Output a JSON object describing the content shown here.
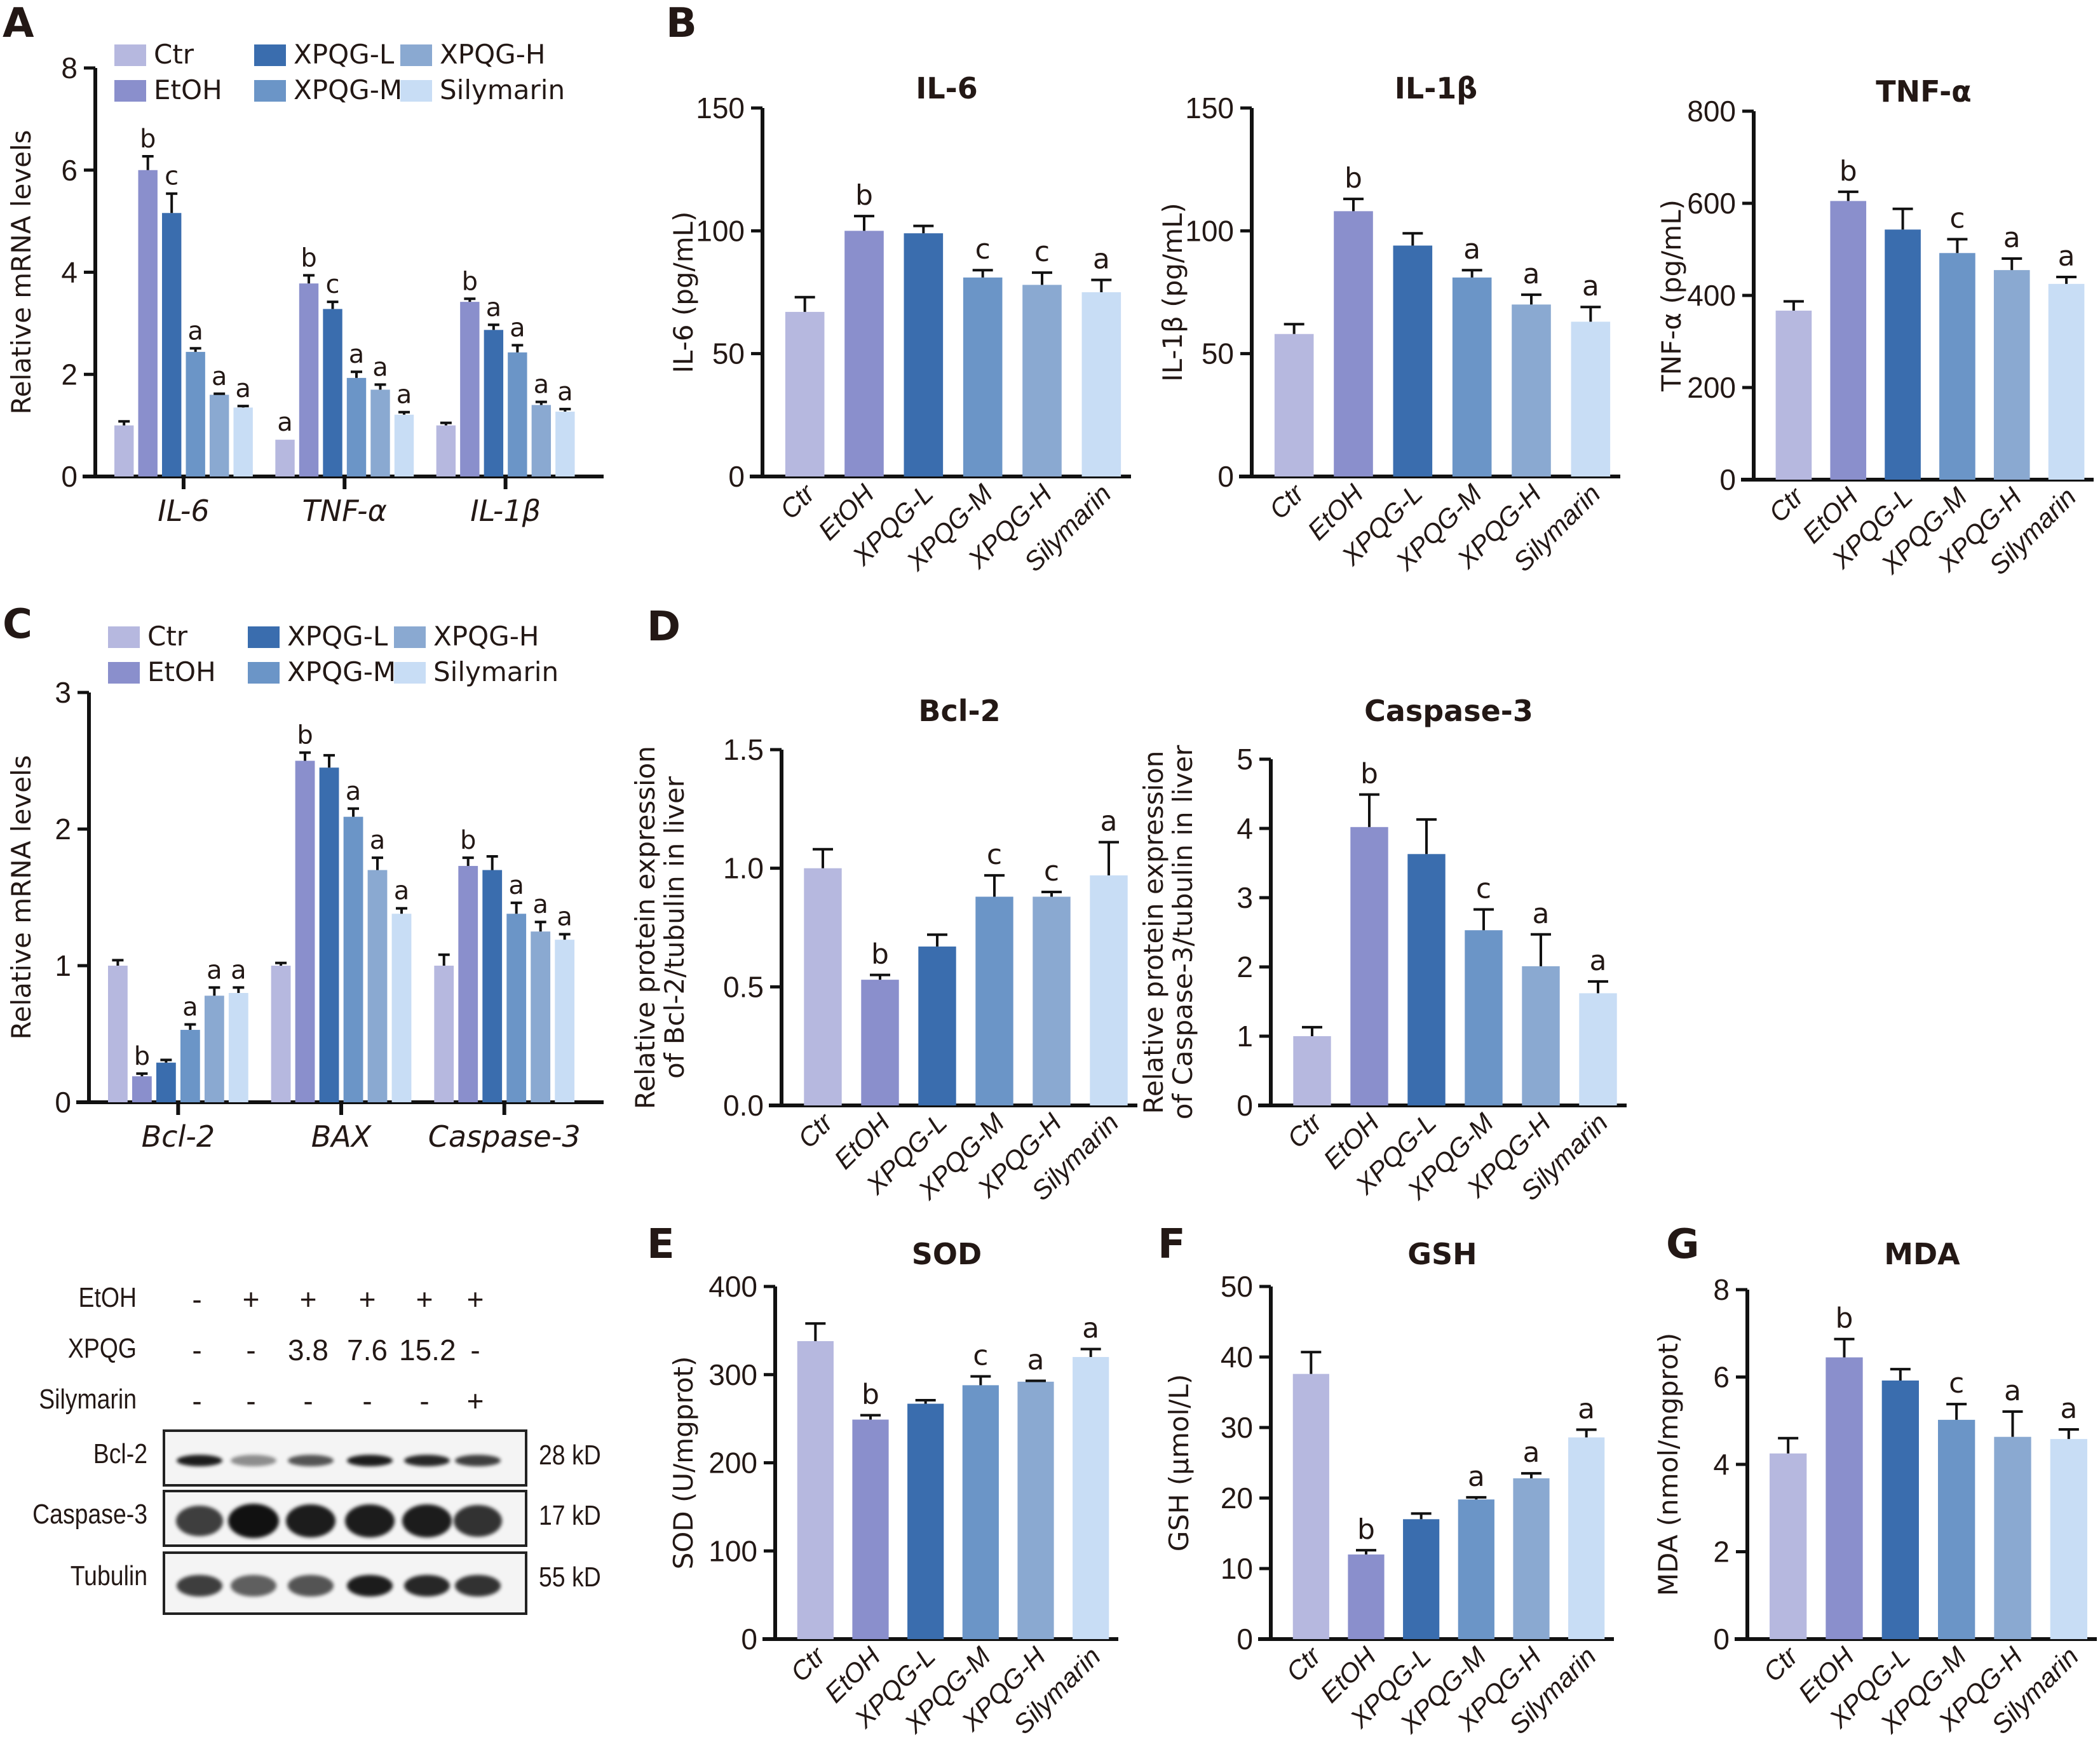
{
  "groups": [
    "Ctr",
    "EtOH",
    "XPQG-L",
    "XPQG-M",
    "XPQG-H",
    "Silymarin"
  ],
  "group_colors": [
    "#B6B8DF",
    "#8A8FCC",
    "#3A6DAE",
    "#6B95C7",
    "#8AA9D1",
    "#C8DDF5"
  ],
  "panel_letters": {
    "A": "A",
    "B": "B",
    "C": "C",
    "D": "D",
    "E": "E",
    "F": "F",
    "G": "G"
  },
  "western_blot": {
    "conditions": [
      {
        "label": "EtOH",
        "values": [
          "-",
          "+",
          "+",
          "+",
          "+",
          "+"
        ]
      },
      {
        "label": "XPQG",
        "values": [
          "-",
          "-",
          "3.8",
          "7.6",
          "15.2",
          "-"
        ]
      },
      {
        "label": "Silymarin",
        "values": [
          "-",
          "-",
          "-",
          "-",
          "-",
          "+"
        ]
      }
    ],
    "bands": [
      {
        "label": "Bcl-2",
        "size": "28 kD",
        "intensity": [
          0.95,
          0.45,
          0.7,
          0.95,
          0.9,
          0.8
        ]
      },
      {
        "label": "Caspase-3",
        "size": "17 kD",
        "intensity": [
          0.8,
          1.0,
          0.95,
          0.95,
          0.95,
          0.85
        ]
      },
      {
        "label": "Tubulin",
        "size": "55 kD",
        "intensity": [
          0.8,
          0.65,
          0.7,
          0.95,
          0.9,
          0.85
        ]
      }
    ]
  },
  "chart_data": [
    {
      "id": "A",
      "type": "bar",
      "grouped": true,
      "title": "",
      "xlabel": "",
      "ylabel": "Relative mRNA levels",
      "ylim": [
        0,
        8
      ],
      "yticks": [
        "0",
        "2",
        "4",
        "6",
        "8"
      ],
      "categories": [
        "IL-6",
        "TNF-α",
        "IL-1β"
      ],
      "legend": {
        "placement": "top",
        "entries": [
          "Ctr",
          "EtOH",
          "XPQG-L",
          "XPQG-M",
          "XPQG-H",
          "Silymarin"
        ]
      },
      "series": [
        {
          "name": "Ctr",
          "values": [
            1.0,
            0.72,
            1.0
          ],
          "errors": [
            0.08,
            0.0,
            0.05
          ],
          "sig": [
            "",
            "a",
            ""
          ]
        },
        {
          "name": "EtOH",
          "values": [
            6.0,
            3.78,
            3.42
          ],
          "errors": [
            0.27,
            0.16,
            0.06
          ],
          "sig": [
            "b",
            "b",
            "b"
          ]
        },
        {
          "name": "XPQG-L",
          "values": [
            5.16,
            3.28,
            2.87
          ],
          "errors": [
            0.38,
            0.14,
            0.1
          ],
          "sig": [
            "c",
            "c",
            "a"
          ]
        },
        {
          "name": "XPQG-M",
          "values": [
            2.44,
            1.93,
            2.43
          ],
          "errors": [
            0.07,
            0.12,
            0.14
          ],
          "sig": [
            "a",
            "a",
            "a"
          ]
        },
        {
          "name": "XPQG-H",
          "values": [
            1.6,
            1.7,
            1.4
          ],
          "errors": [
            0.02,
            0.1,
            0.06
          ],
          "sig": [
            "a",
            "a",
            "a"
          ]
        },
        {
          "name": "Silymarin",
          "values": [
            1.35,
            1.21,
            1.27
          ],
          "errors": [
            0.03,
            0.05,
            0.05
          ],
          "sig": [
            "a",
            "a",
            "a"
          ]
        }
      ]
    },
    {
      "id": "B1",
      "type": "bar",
      "title": "IL-6",
      "ylabel": "IL-6 (pg/mL)",
      "ylim": [
        0,
        150
      ],
      "yticks": [
        "0",
        "50",
        "100",
        "150"
      ],
      "categories": [
        "Ctr",
        "EtOH",
        "XPQG-L",
        "XPQG-M",
        "XPQG-H",
        "Silymarin"
      ],
      "values": [
        67,
        100,
        99,
        81,
        78,
        75
      ],
      "errors": [
        6,
        6,
        3,
        3,
        5,
        5
      ],
      "sig": [
        "",
        "b",
        "",
        "c",
        "c",
        "a"
      ]
    },
    {
      "id": "B2",
      "type": "bar",
      "title": "IL-1β",
      "ylabel": "IL-1β (pg/mL)",
      "ylim": [
        0,
        150
      ],
      "yticks": [
        "0",
        "50",
        "100",
        "150"
      ],
      "categories": [
        "Ctr",
        "EtOH",
        "XPQG-L",
        "XPQG-M",
        "XPQG-H",
        "Silymarin"
      ],
      "values": [
        58,
        108,
        94,
        81,
        70,
        63
      ],
      "errors": [
        4,
        5,
        5,
        3,
        4,
        6
      ],
      "sig": [
        "",
        "b",
        "",
        "a",
        "a",
        "a"
      ]
    },
    {
      "id": "B3",
      "type": "bar",
      "title": "TNF-α",
      "ylabel": "TNF-α (pg/mL)",
      "ylim": [
        0,
        800
      ],
      "yticks": [
        "0",
        "200",
        "400",
        "600",
        "800"
      ],
      "categories": [
        "Ctr",
        "EtOH",
        "XPQG-L",
        "XPQG-M",
        "XPQG-H",
        "Silymarin"
      ],
      "values": [
        367,
        605,
        543,
        492,
        455,
        425
      ],
      "errors": [
        20,
        20,
        45,
        30,
        25,
        15
      ],
      "sig": [
        "",
        "b",
        "",
        "c",
        "a",
        "a"
      ]
    },
    {
      "id": "C",
      "type": "bar",
      "grouped": true,
      "title": "",
      "xlabel": "",
      "ylabel": "Relative mRNA levels",
      "ylim": [
        0,
        3
      ],
      "yticks": [
        "0",
        "1",
        "2",
        "3"
      ],
      "categories": [
        "Bcl-2",
        "BAX",
        "Caspase-3"
      ],
      "legend": {
        "placement": "top",
        "entries": [
          "Ctr",
          "EtOH",
          "XPQG-L",
          "XPQG-M",
          "XPQG-H",
          "Silymarin"
        ]
      },
      "series": [
        {
          "name": "Ctr",
          "values": [
            1.0,
            1.0,
            1.0
          ],
          "errors": [
            0.04,
            0.02,
            0.08
          ],
          "sig": [
            "",
            "",
            ""
          ]
        },
        {
          "name": "EtOH",
          "values": [
            0.19,
            2.5,
            1.73
          ],
          "errors": [
            0.02,
            0.06,
            0.06
          ],
          "sig": [
            "b",
            "b",
            "b"
          ]
        },
        {
          "name": "XPQG-L",
          "values": [
            0.29,
            2.45,
            1.7
          ],
          "errors": [
            0.02,
            0.09,
            0.1
          ],
          "sig": [
            "",
            "",
            ""
          ]
        },
        {
          "name": "XPQG-M",
          "values": [
            0.53,
            2.09,
            1.38
          ],
          "errors": [
            0.04,
            0.06,
            0.08
          ],
          "sig": [
            "a",
            "a",
            "a"
          ]
        },
        {
          "name": "XPQG-H",
          "values": [
            0.78,
            1.7,
            1.25
          ],
          "errors": [
            0.06,
            0.09,
            0.07
          ],
          "sig": [
            "a",
            "a",
            "a"
          ]
        },
        {
          "name": "Silymarin",
          "values": [
            0.8,
            1.38,
            1.19
          ],
          "errors": [
            0.04,
            0.04,
            0.04
          ],
          "sig": [
            "a",
            "a",
            "a"
          ]
        }
      ]
    },
    {
      "id": "D1",
      "type": "bar",
      "title": "Bcl-2",
      "ylabel": "Relative protein expression of Bcl-2/tubulin in liver",
      "ylabel_lines": [
        "Relative protein expression",
        "of Bcl-2/tubulin in liver"
      ],
      "ylim": [
        0,
        1.5
      ],
      "yticks": [
        "0.0",
        "0.5",
        "1.0",
        "1.5"
      ],
      "categories": [
        "Ctr",
        "EtOH",
        "XPQG-L",
        "XPQG-M",
        "XPQG-H",
        "Silymarin"
      ],
      "values": [
        1.0,
        0.53,
        0.67,
        0.88,
        0.88,
        0.97
      ],
      "errors": [
        0.08,
        0.02,
        0.05,
        0.09,
        0.02,
        0.14
      ],
      "sig": [
        "",
        "b",
        "",
        "c",
        "c",
        "a"
      ]
    },
    {
      "id": "D2",
      "type": "bar",
      "title": "Caspase-3",
      "ylabel": "Relative protein expression of Caspase-3/tubulin in liver",
      "ylabel_lines": [
        "Relative protein expression",
        "of Caspase-3/tubulin in liver"
      ],
      "ylim": [
        0,
        5
      ],
      "yticks": [
        "0",
        "1",
        "2",
        "3",
        "4",
        "5"
      ],
      "categories": [
        "Ctr",
        "EtOH",
        "XPQG-L",
        "XPQG-M",
        "XPQG-H",
        "Silymarin"
      ],
      "values": [
        1.0,
        4.02,
        3.63,
        2.53,
        2.01,
        1.62
      ],
      "errors": [
        0.13,
        0.47,
        0.5,
        0.3,
        0.46,
        0.17
      ],
      "sig": [
        "",
        "b",
        "",
        "c",
        "a",
        "a"
      ]
    },
    {
      "id": "E",
      "type": "bar",
      "title": "SOD",
      "ylabel": "SOD (U/mgprot)",
      "ylim": [
        0,
        400
      ],
      "yticks": [
        "0",
        "100",
        "200",
        "300",
        "400"
      ],
      "categories": [
        "Ctr",
        "EtOH",
        "XPQG-L",
        "XPQG-M",
        "XPQG-H",
        "Silymarin"
      ],
      "values": [
        338,
        249,
        267,
        288,
        292,
        320
      ],
      "errors": [
        20,
        5,
        4,
        10,
        1,
        9
      ],
      "sig": [
        "",
        "b",
        "",
        "c",
        "a",
        "a"
      ]
    },
    {
      "id": "F",
      "type": "bar",
      "title": "GSH",
      "ylabel": "GSH (μmol/L)",
      "ylim": [
        0,
        50
      ],
      "yticks": [
        "0",
        "10",
        "20",
        "30",
        "40",
        "50"
      ],
      "categories": [
        "Ctr",
        "EtOH",
        "XPQG-L",
        "XPQG-M",
        "XPQG-H",
        "Silymarin"
      ],
      "values": [
        37.6,
        12.0,
        17.0,
        19.8,
        22.8,
        28.6
      ],
      "errors": [
        3.1,
        0.6,
        0.8,
        0.3,
        0.7,
        1.1
      ],
      "sig": [
        "",
        "b",
        "",
        "a",
        "a",
        "a"
      ]
    },
    {
      "id": "G",
      "type": "bar",
      "title": "MDA",
      "ylabel": "MDA (nmol/mgprot)",
      "ylim": [
        0,
        8
      ],
      "yticks": [
        "0",
        "2",
        "4",
        "6",
        "8"
      ],
      "categories": [
        "Ctr",
        "EtOH",
        "XPQG-L",
        "XPQG-M",
        "XPQG-H",
        "Silymarin"
      ],
      "values": [
        4.25,
        6.45,
        5.92,
        5.02,
        4.63,
        4.58
      ],
      "errors": [
        0.35,
        0.42,
        0.26,
        0.36,
        0.58,
        0.22
      ],
      "sig": [
        "",
        "b",
        "",
        "c",
        "a",
        "a"
      ]
    }
  ]
}
